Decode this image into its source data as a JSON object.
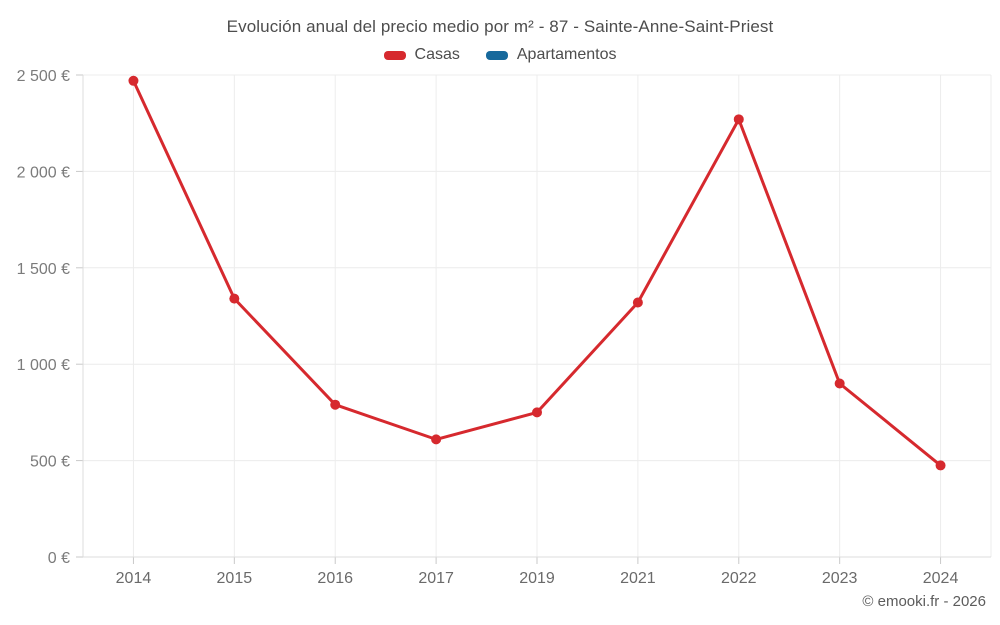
{
  "title": "Evolución anual del precio medio por m² - 87 - Sainte-Anne-Saint-Priest",
  "footer": "© emooki.fr - 2026",
  "legend": [
    {
      "label": "Casas",
      "color": "#d6292e"
    },
    {
      "label": "Apartamentos",
      "color": "#17699c"
    }
  ],
  "colors": {
    "casas_series": "#d6292e",
    "apartamentos_series": "#17699c",
    "gridline": "#ececec",
    "axis_line": "#dcdcdc",
    "tick_mark": "#c9c9c9",
    "y_label_text": "#7b7b7b",
    "x_label_text": "#6a6a6a",
    "title_text": "#4d4d4d"
  },
  "chart_data": {
    "type": "line",
    "title": "Evolución anual del precio medio por m² - 87 - Sainte-Anne-Saint-Priest",
    "categories": [
      "2014",
      "2015",
      "2016",
      "2017",
      "2019",
      "2021",
      "2022",
      "2023",
      "2024"
    ],
    "series": [
      {
        "name": "Casas",
        "color": "#d6292e",
        "values": [
          2470,
          1340,
          790,
          610,
          750,
          1320,
          2270,
          900,
          475
        ]
      },
      {
        "name": "Apartamentos",
        "color": "#17699c",
        "values": []
      }
    ],
    "xlabel": "",
    "ylabel": "",
    "ylim": [
      0,
      2500
    ],
    "ytick_step": 500,
    "ytick_labels": [
      "0 €",
      "500 €",
      "1 000 €",
      "1 500 €",
      "2 000 €",
      "2 500 €"
    ],
    "grid": true,
    "legend_position": "top",
    "marker": "circle",
    "unit": "€"
  }
}
